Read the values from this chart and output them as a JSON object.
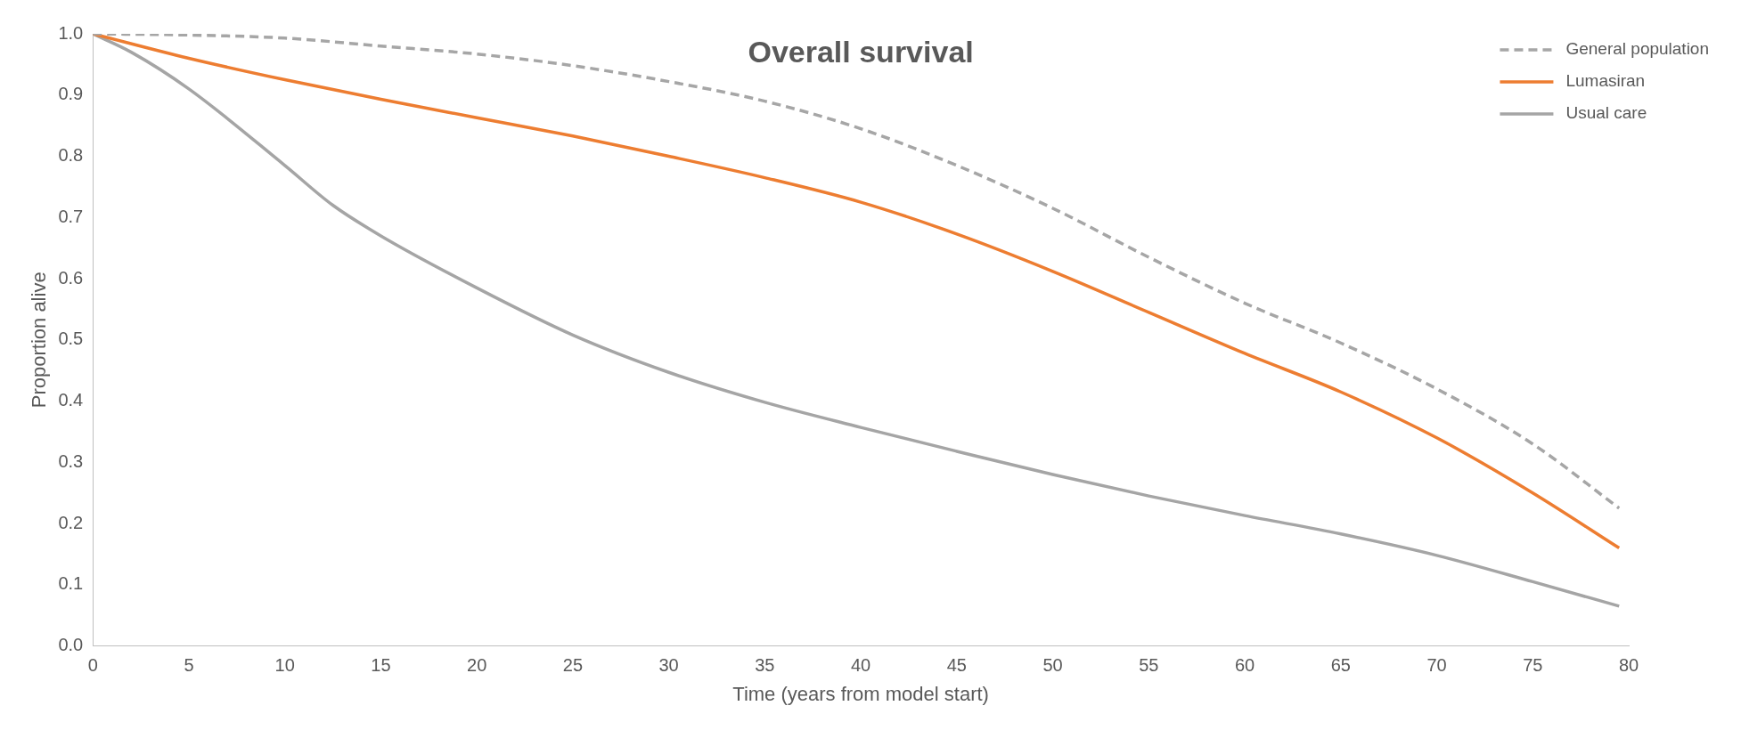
{
  "chart_data": {
    "type": "line",
    "title": "Overall survival",
    "xlabel": "Time (years from model start)",
    "ylabel": "Proportion alive",
    "xlim": [
      0,
      80
    ],
    "xticks": [
      0,
      5,
      10,
      15,
      20,
      25,
      30,
      35,
      40,
      45,
      50,
      55,
      60,
      65,
      70,
      75,
      80
    ],
    "ylim": [
      0,
      1
    ],
    "yticks": [
      {
        "value": 0,
        "label": "0.0"
      },
      {
        "value": 0.1,
        "label": "0.1"
      },
      {
        "value": 0.2,
        "label": "0.2"
      },
      {
        "value": 0.3,
        "label": "0.3"
      },
      {
        "value": 0.4,
        "label": "0.4"
      },
      {
        "value": 0.5,
        "label": "0.5"
      },
      {
        "value": 0.6,
        "label": "0.6"
      },
      {
        "value": 0.7,
        "label": "0.7"
      },
      {
        "value": 0.8,
        "label": "0.8"
      },
      {
        "value": 0.9,
        "label": "0.9"
      },
      {
        "value": 1,
        "label": "1.0"
      }
    ],
    "grid": false,
    "legend": "top right",
    "marker": "none",
    "series": [
      {
        "name": "General population",
        "color": "#a6a6a6",
        "line_style": "dashed",
        "x": [
          0,
          5,
          10,
          15,
          20,
          25,
          30,
          35,
          40,
          45,
          50,
          55,
          60,
          65,
          70,
          75,
          79.5
        ],
        "values": [
          1.0,
          0.998,
          0.993,
          0.98,
          0.967,
          0.948,
          0.922,
          0.89,
          0.845,
          0.785,
          0.715,
          0.635,
          0.56,
          0.495,
          0.42,
          0.33,
          0.225
        ]
      },
      {
        "name": "Lumasiran",
        "color": "#ed7d31",
        "line_style": "solid",
        "x": [
          0,
          5,
          10,
          15,
          20,
          25,
          30,
          35,
          40,
          45,
          50,
          55,
          60,
          65,
          70,
          75,
          79.5
        ],
        "values": [
          1.0,
          0.96,
          0.925,
          0.893,
          0.863,
          0.833,
          0.8,
          0.765,
          0.725,
          0.673,
          0.612,
          0.545,
          0.478,
          0.415,
          0.34,
          0.25,
          0.16
        ]
      },
      {
        "name": "Usual care",
        "color": "#a5a5a5",
        "line_style": "solid",
        "x": [
          0,
          2,
          5,
          10,
          12.5,
          15,
          20,
          25,
          30,
          35,
          40,
          45,
          50,
          55,
          60,
          65,
          70,
          75,
          79.5
        ],
        "values": [
          1.0,
          0.97,
          0.91,
          0.785,
          0.72,
          0.67,
          0.585,
          0.508,
          0.447,
          0.398,
          0.357,
          0.318,
          0.28,
          0.245,
          0.213,
          0.183,
          0.148,
          0.105,
          0.065
        ]
      }
    ]
  }
}
